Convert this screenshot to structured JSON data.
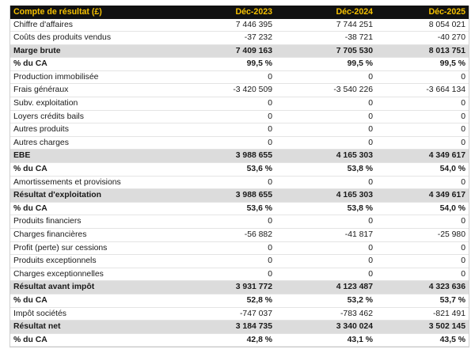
{
  "table": {
    "headers": [
      "Compte de résultat (£)",
      "Déc-2023",
      "Déc-2024",
      "Déc-2025"
    ],
    "rows": [
      {
        "label": "Chiffre d'affaires",
        "values": [
          "7 446 395",
          "7 744 251",
          "8 054 021"
        ],
        "style": "normal"
      },
      {
        "label": "Coûts des produits vendus",
        "values": [
          "-37 232",
          "-38 721",
          "-40 270"
        ],
        "style": "normal"
      },
      {
        "label": "Marge brute",
        "values": [
          "7 409 163",
          "7 705 530",
          "8 013 751"
        ],
        "style": "highlight"
      },
      {
        "label": "% du CA",
        "values": [
          "99,5 %",
          "99,5 %",
          "99,5 %"
        ],
        "style": "percent"
      },
      {
        "label": "Production immobilisée",
        "values": [
          "0",
          "0",
          "0"
        ],
        "style": "normal"
      },
      {
        "label": "Frais généraux",
        "values": [
          "-3 420 509",
          "-3 540 226",
          "-3 664 134"
        ],
        "style": "normal"
      },
      {
        "label": "Subv. exploitation",
        "values": [
          "0",
          "0",
          "0"
        ],
        "style": "normal"
      },
      {
        "label": "Loyers crédits bails",
        "values": [
          "0",
          "0",
          "0"
        ],
        "style": "normal"
      },
      {
        "label": "Autres produits",
        "values": [
          "0",
          "0",
          "0"
        ],
        "style": "normal"
      },
      {
        "label": "Autres charges",
        "values": [
          "0",
          "0",
          "0"
        ],
        "style": "normal"
      },
      {
        "label": "EBE",
        "values": [
          "3 988 655",
          "4 165 303",
          "4 349 617"
        ],
        "style": "highlight"
      },
      {
        "label": "% du CA",
        "values": [
          "53,6 %",
          "53,8 %",
          "54,0 %"
        ],
        "style": "percent"
      },
      {
        "label": "Amortissements et provisions",
        "values": [
          "0",
          "0",
          "0"
        ],
        "style": "normal"
      },
      {
        "label": "Résultat d'exploitation",
        "values": [
          "3 988 655",
          "4 165 303",
          "4 349 617"
        ],
        "style": "highlight"
      },
      {
        "label": "% du CA",
        "values": [
          "53,6 %",
          "53,8 %",
          "54,0 %"
        ],
        "style": "percent"
      },
      {
        "label": "Produits financiers",
        "values": [
          "0",
          "0",
          "0"
        ],
        "style": "normal"
      },
      {
        "label": "Charges financières",
        "values": [
          "-56 882",
          "-41 817",
          "-25 980"
        ],
        "style": "normal"
      },
      {
        "label": "Profit (perte) sur cessions",
        "values": [
          "0",
          "0",
          "0"
        ],
        "style": "normal"
      },
      {
        "label": "Produits exceptionnels",
        "values": [
          "0",
          "0",
          "0"
        ],
        "style": "normal"
      },
      {
        "label": "Charges exceptionnelles",
        "values": [
          "0",
          "0",
          "0"
        ],
        "style": "normal"
      },
      {
        "label": "Résultat avant impôt",
        "values": [
          "3 931 772",
          "4 123 487",
          "4 323 636"
        ],
        "style": "highlight"
      },
      {
        "label": "% du CA",
        "values": [
          "52,8 %",
          "53,2 %",
          "53,7 %"
        ],
        "style": "percent"
      },
      {
        "label": "Impôt sociétés",
        "values": [
          "-747 037",
          "-783 462",
          "-821 491"
        ],
        "style": "normal"
      },
      {
        "label": "Résultat net",
        "values": [
          "3 184 735",
          "3 340 024",
          "3 502 145"
        ],
        "style": "highlight"
      },
      {
        "label": "% du CA",
        "values": [
          "42,8 %",
          "43,1 %",
          "43,5 %"
        ],
        "style": "percent"
      }
    ]
  },
  "colors": {
    "header_bg": "#111111",
    "header_text": "#f5c000",
    "highlight_row_bg": "#dcdcdc"
  }
}
